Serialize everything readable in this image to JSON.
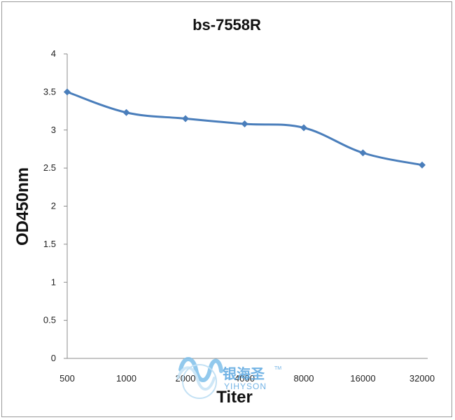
{
  "chart_data": {
    "type": "line",
    "title": "bs-7558R",
    "xlabel": "Titer",
    "ylabel": "OD450nm",
    "categories": [
      "500",
      "1000",
      "2000",
      "4000",
      "8000",
      "16000",
      "32000"
    ],
    "series": [
      {
        "values": [
          3.5,
          3.23,
          3.15,
          3.08,
          3.03,
          2.7,
          2.54
        ],
        "color": "#4a7ebb"
      }
    ],
    "ylim": [
      0,
      4
    ],
    "yticks": [
      "0",
      "0.5",
      "1",
      "1.5",
      "2",
      "2.5",
      "3",
      "3.5",
      "4"
    ],
    "grid": false,
    "legend": "none"
  },
  "watermark": {
    "chinese": "银海圣",
    "english": "YIHYSON",
    "tm": "TM"
  }
}
